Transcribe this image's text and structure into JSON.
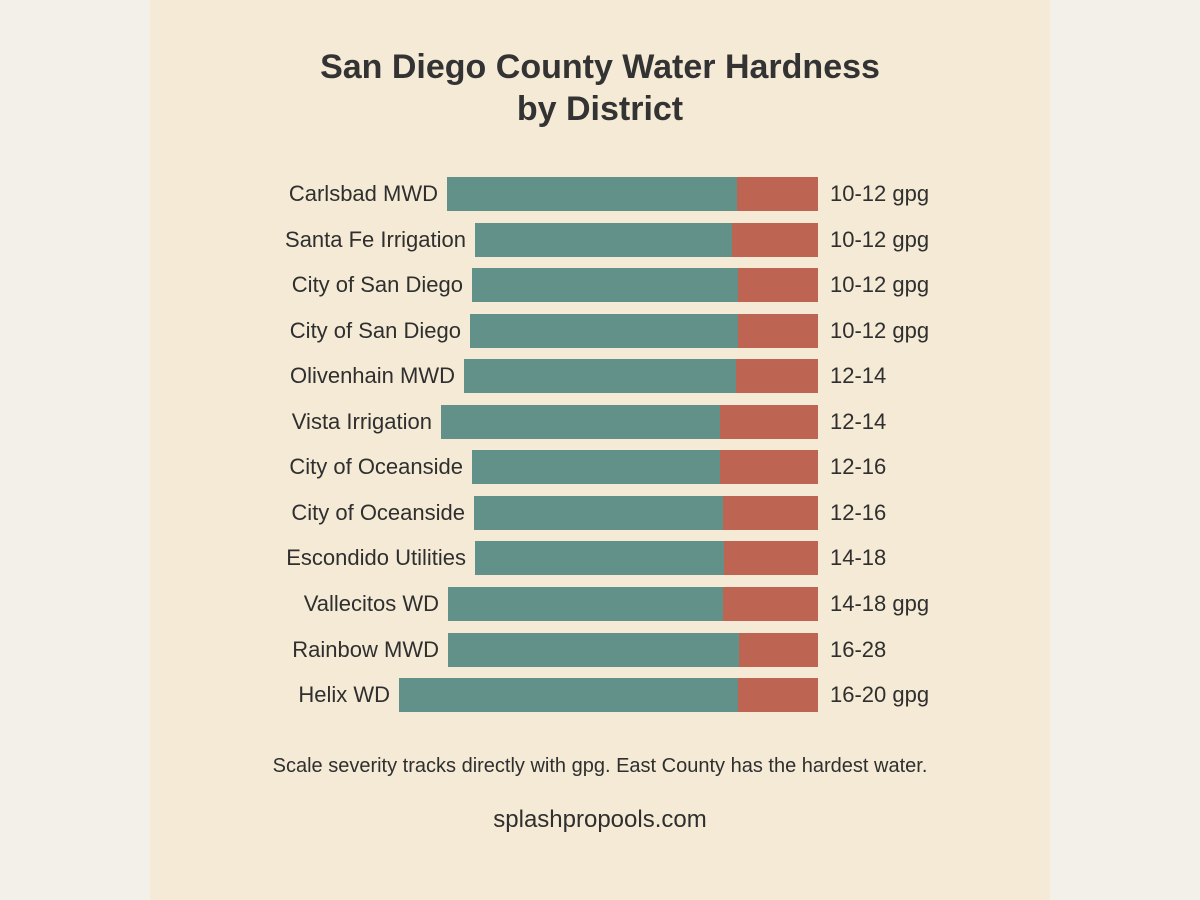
{
  "header": {
    "title_lines": [
      "San Diego County Water Hardness",
      "by District"
    ]
  },
  "rows": [
    {
      "district": "Carlsbad MWD",
      "hardness": "10-12 gpg"
    },
    {
      "district": "Santa Fe Irrigation",
      "hardness": "10-12 gpg"
    },
    {
      "district": "City of San Diego",
      "hardness": "10-12 gpg"
    },
    {
      "district": "City of San Diego",
      "hardness": "10-12 gpg"
    },
    {
      "district": "Olivenhain MWD",
      "hardness": "12-14"
    },
    {
      "district": "Vista Irrigation",
      "hardness": "12-14"
    },
    {
      "district": "City of Oceanside",
      "hardness": "12-16"
    },
    {
      "district": "City of Oceanside",
      "hardness": "12-16"
    },
    {
      "district": "Escondido Utilities",
      "hardness": "14-18"
    },
    {
      "district": "Vallecitos WD",
      "hardness": "14-18 gpg"
    },
    {
      "district": "Rainbow MWD",
      "hardness": "16-28"
    },
    {
      "district": "Helix WD",
      "hardness": "16-20 gpg"
    }
  ],
  "footnote": "Scale severity tracks directly with gpg. East County has the hardest water.",
  "source": "splashpropools.com"
}
